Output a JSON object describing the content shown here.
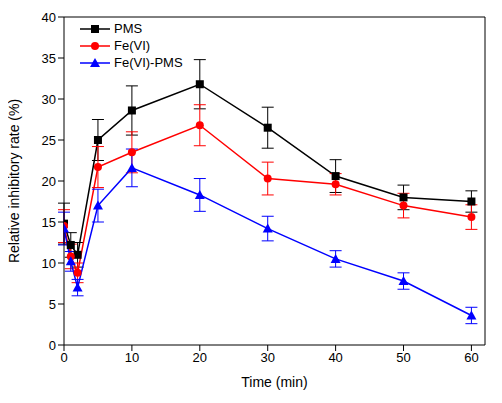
{
  "chart_data": {
    "type": "line",
    "xlabel": "Time (min)",
    "ylabel": "Relative inhibitory rate (%)",
    "x": [
      0,
      1,
      2,
      5,
      10,
      20,
      30,
      40,
      50,
      60
    ],
    "xlim": [
      0,
      62
    ],
    "xticks": [
      0,
      10,
      20,
      30,
      40,
      50,
      60
    ],
    "ylim": [
      0,
      40
    ],
    "yticks": [
      0,
      5,
      10,
      15,
      20,
      25,
      30,
      35,
      40
    ],
    "legend": "upper left",
    "series": [
      {
        "name": "PMS",
        "color": "#000000",
        "marker": "square",
        "values": [
          14.8,
          12.2,
          11.0,
          25.0,
          28.6,
          31.8,
          26.5,
          20.6,
          18.0,
          17.5
        ],
        "errors": [
          2.5,
          1.5,
          1.5,
          2.5,
          3.0,
          3.0,
          2.5,
          2.0,
          1.5,
          1.3
        ]
      },
      {
        "name": "Fe(VI)",
        "color": "#ff0000",
        "marker": "circle",
        "values": [
          14.5,
          10.8,
          8.8,
          21.7,
          23.5,
          26.8,
          20.3,
          19.6,
          17.0,
          15.6
        ],
        "errors": [
          2.0,
          1.5,
          1.2,
          2.5,
          2.5,
          2.5,
          2.0,
          1.3,
          1.5,
          1.5
        ]
      },
      {
        "name": "Fe(VI)-PMS",
        "color": "#0000ff",
        "marker": "triangle",
        "values": [
          14.2,
          10.2,
          7.0,
          17.0,
          21.6,
          18.3,
          14.2,
          10.5,
          7.8,
          3.6
        ],
        "errors": [
          2.0,
          1.2,
          1.0,
          2.0,
          2.3,
          2.0,
          1.5,
          1.0,
          1.0,
          1.0
        ]
      }
    ]
  }
}
